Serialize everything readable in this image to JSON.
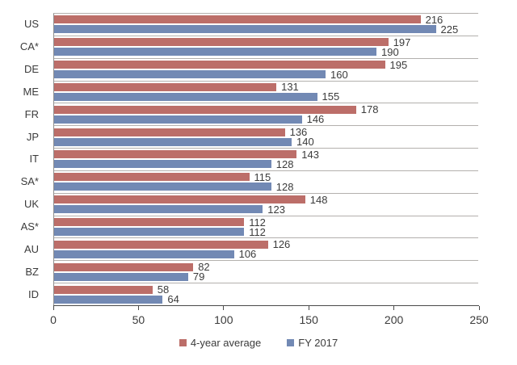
{
  "chart_data": {
    "type": "bar",
    "orientation": "horizontal",
    "title": "",
    "xlabel": "",
    "ylabel": "",
    "categories": [
      "US",
      "CA*",
      "DE",
      "ME",
      "FR",
      "JP",
      "IT",
      "SA*",
      "UK",
      "AS*",
      "AU",
      "BZ",
      "ID"
    ],
    "series": [
      {
        "name": "4-year average",
        "color": "#bc6e69",
        "values": [
          216,
          197,
          195,
          131,
          178,
          136,
          143,
          115,
          148,
          112,
          126,
          82,
          58
        ]
      },
      {
        "name": "FY 2017",
        "color": "#7289b4",
        "values": [
          225,
          190,
          160,
          155,
          146,
          140,
          128,
          128,
          123,
          112,
          106,
          79,
          64
        ]
      }
    ],
    "xlim": [
      0,
      250
    ],
    "x_ticks": [
      0,
      50,
      100,
      150,
      200,
      250
    ],
    "grid": "category-separator-lines",
    "value_labels": "shown at bar ends",
    "legend_position": "bottom-center",
    "colors": {
      "gridline": "#b3b0ad",
      "axis_line": "#4a4a4a",
      "text": "#3b3b3b",
      "background": "#ffffff"
    }
  }
}
